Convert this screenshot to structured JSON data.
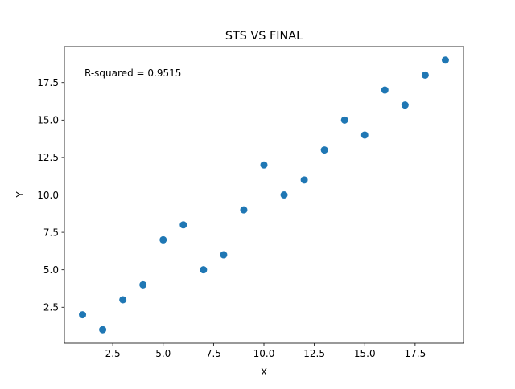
{
  "chart_data": {
    "type": "scatter",
    "title": "STS VS FINAL",
    "xlabel": "X",
    "ylabel": "Y",
    "annotation": "R-squared = 0.9515",
    "xlim": [
      0.1,
      19.9
    ],
    "ylim": [
      0.1,
      19.9
    ],
    "x_ticks": [
      2.5,
      5.0,
      7.5,
      10.0,
      12.5,
      15.0,
      17.5
    ],
    "x_tick_labels": [
      "2.5",
      "5.0",
      "7.5",
      "10.0",
      "12.5",
      "15.0",
      "17.5"
    ],
    "y_ticks": [
      2.5,
      5.0,
      7.5,
      10.0,
      12.5,
      15.0,
      17.5
    ],
    "y_tick_labels": [
      "2.5",
      "5.0",
      "7.5",
      "10.0",
      "12.5",
      "15.0",
      "17.5"
    ],
    "grid": false,
    "marker_color": "#1f77b4",
    "series": [
      {
        "x": [
          1,
          2,
          3,
          4,
          5,
          6,
          7,
          8,
          9,
          10,
          11,
          12,
          13,
          14,
          15,
          16,
          17,
          18,
          19
        ],
        "y": [
          2,
          1,
          3,
          4,
          7,
          8,
          5,
          6,
          9,
          12,
          10,
          11,
          13,
          15,
          14,
          17,
          16,
          18,
          19
        ]
      }
    ]
  }
}
